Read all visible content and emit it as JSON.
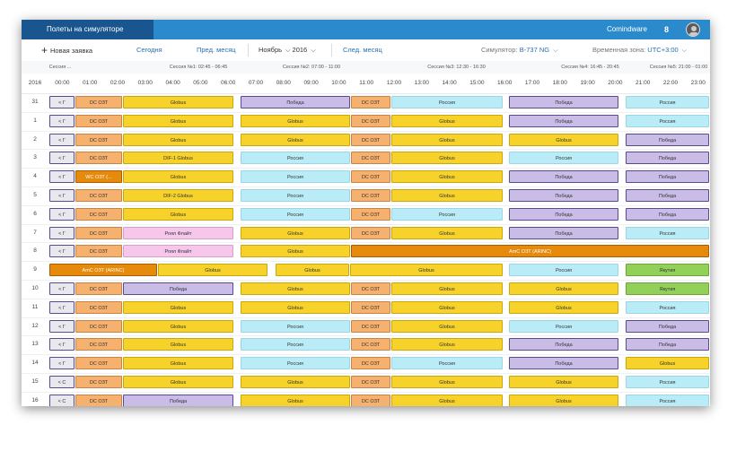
{
  "header": {
    "app_title": "Полеты на симуляторе",
    "brand": "Comindware",
    "badge": "8"
  },
  "toolbar": {
    "new_request": "Новая заявка",
    "today": "Сегодня",
    "prev_month": "Пред. месяц",
    "month": "Ноябрь",
    "year": "2016",
    "next_month": "След. месяц",
    "simulator_label": "Симулятор:",
    "simulator_value": "B-737 NG",
    "timezone_label": "Временная зона:",
    "timezone_value": "UTC+3:00"
  },
  "icons": {
    "add": "plus-icon",
    "dropdown": "chevron-down-icon",
    "avatar": "user-avatar-icon"
  },
  "colors": {
    "topbar": "#2a8acb",
    "title": "#19558f",
    "dc_ozt": "#f7b16e",
    "globus": "#f6d22a",
    "pobeda": "#c9bde8",
    "rossiya": "#b9ecf7",
    "royal": "#f6c6eb",
    "arinc": "#e58a0a",
    "yakutia": "#92d05a"
  },
  "sessions": [
    {
      "label": "Сессия ..."
    },
    {
      "label": "Сессия №1: 02:45 - 06:45"
    },
    {
      "label": "Сессия №2: 07:00 - 11:00"
    },
    {
      "label": "Сессия №3: 12:30 - 16:30"
    },
    {
      "label": "Сессия №4: 16:45 - 20:45"
    },
    {
      "label": "Сессия №5: 21:00 - 01:00"
    }
  ],
  "year_label": "2016",
  "hours": [
    "00:00",
    "01:00",
    "02:00",
    "03:00",
    "04:00",
    "05:00",
    "06:00",
    "07:00",
    "08:00",
    "09:00",
    "10:00",
    "11:00",
    "12:00",
    "13:00",
    "14:00",
    "15:00",
    "16:00",
    "17:00",
    "18:00",
    "19:00",
    "20:00",
    "21:00",
    "22:00",
    "23:00"
  ],
  "rows": [
    {
      "day": "31",
      "prefix": "<  Г",
      "blocks": [
        [
          "DC ОЗТ",
          "o"
        ],
        [
          "Globus",
          "y"
        ],
        [
          "Победа",
          "p"
        ],
        [
          "DC ОЗТ",
          "o"
        ],
        [
          "Россия",
          "c"
        ],
        [
          "Победа",
          "p"
        ],
        [
          "Россия",
          "c"
        ]
      ]
    },
    {
      "day": "1",
      "prefix": "<  Г",
      "blocks": [
        [
          "DC ОЗТ",
          "o"
        ],
        [
          "Globus",
          "y"
        ],
        [
          "Globus",
          "y"
        ],
        [
          "DC ОЗТ",
          "o"
        ],
        [
          "Globus",
          "y"
        ],
        [
          "Победа",
          "p"
        ],
        [
          "Россия",
          "c"
        ]
      ]
    },
    {
      "day": "2",
      "prefix": "<  Г",
      "blocks": [
        [
          "DC ОЗТ",
          "o"
        ],
        [
          "Globus",
          "y"
        ],
        [
          "Globus",
          "y"
        ],
        [
          "DC ОЗТ",
          "o"
        ],
        [
          "Globus",
          "y"
        ],
        [
          "Globus",
          "y"
        ],
        [
          "Победа",
          "p"
        ]
      ]
    },
    {
      "day": "3",
      "prefix": "<  Г",
      "blocks": [
        [
          "DC ОЗТ",
          "o"
        ],
        [
          "DIF-1 Globus",
          "y"
        ],
        [
          "Россия",
          "c"
        ],
        [
          "DC ОЗТ",
          "o"
        ],
        [
          "Globus",
          "y"
        ],
        [
          "Россия",
          "c"
        ],
        [
          "Победа",
          "p"
        ]
      ]
    },
    {
      "day": "4",
      "prefix": "<  Г",
      "blocks": [
        [
          "WC ОЗТ (...",
          "d"
        ],
        [
          "Globus",
          "y"
        ],
        [
          "Россия",
          "c"
        ],
        [
          "DC ОЗТ",
          "o"
        ],
        [
          "Globus",
          "y"
        ],
        [
          "Победа",
          "p"
        ],
        [
          "Победа",
          "p"
        ]
      ]
    },
    {
      "day": "5",
      "prefix": "<  Г",
      "blocks": [
        [
          "DC ОЗТ",
          "o"
        ],
        [
          "DIF-2 Globus",
          "y"
        ],
        [
          "Россия",
          "c"
        ],
        [
          "DC ОЗТ",
          "o"
        ],
        [
          "Globus",
          "y"
        ],
        [
          "Победа",
          "p"
        ],
        [
          "Победа",
          "p"
        ]
      ]
    },
    {
      "day": "6",
      "prefix": "<  Г",
      "blocks": [
        [
          "DC ОЗТ",
          "o"
        ],
        [
          "Globus",
          "y"
        ],
        [
          "Россия",
          "c"
        ],
        [
          "DC ОЗТ",
          "o"
        ],
        [
          "Россия",
          "c"
        ],
        [
          "Победа",
          "p"
        ],
        [
          "Победа",
          "p"
        ]
      ]
    },
    {
      "day": "7",
      "prefix": "<  Г",
      "blocks": [
        [
          "DC ОЗТ",
          "o"
        ],
        [
          "Роял Флайт",
          "k"
        ],
        [
          "Globus",
          "y"
        ],
        [
          "DC ОЗТ",
          "o"
        ],
        [
          "Globus",
          "y"
        ],
        [
          "Победа",
          "p"
        ],
        [
          "Россия",
          "c"
        ]
      ]
    },
    {
      "day": "8",
      "prefix": "<  Г",
      "special": "arinc8",
      "blocks": [
        [
          "DC ОЗТ",
          "o"
        ],
        [
          "Роял Флайт",
          "k"
        ],
        [
          "Globus",
          "y"
        ],
        [
          "AmC ОЗТ (ARINC)",
          "d"
        ]
      ]
    },
    {
      "day": "9",
      "prefix": "",
      "special": "arinc9",
      "blocks": [
        [
          "AmC ОЗТ (ARINC)",
          "d"
        ],
        [
          "Globus",
          "y"
        ],
        [
          "Globus",
          "y"
        ],
        [
          "Globus",
          "y"
        ],
        [
          "Россия",
          "c"
        ],
        [
          "Якутия",
          "g"
        ]
      ]
    },
    {
      "day": "10",
      "prefix": "<  Г",
      "blocks": [
        [
          "DC ОЗТ",
          "o"
        ],
        [
          "Победа",
          "p"
        ],
        [
          "Globus",
          "y"
        ],
        [
          "DC ОЗТ",
          "o"
        ],
        [
          "Globus",
          "y"
        ],
        [
          "Globus",
          "y"
        ],
        [
          "Якутия",
          "g"
        ]
      ]
    },
    {
      "day": "11",
      "prefix": "<  Г",
      "blocks": [
        [
          "DC ОЗТ",
          "o"
        ],
        [
          "Globus",
          "y"
        ],
        [
          "Globus",
          "y"
        ],
        [
          "DC ОЗТ",
          "o"
        ],
        [
          "Globus",
          "y"
        ],
        [
          "Globus",
          "y"
        ],
        [
          "Россия",
          "c"
        ]
      ]
    },
    {
      "day": "12",
      "prefix": "<  Г",
      "blocks": [
        [
          "DC ОЗТ",
          "o"
        ],
        [
          "Globus",
          "y"
        ],
        [
          "Россия",
          "c"
        ],
        [
          "DC ОЗТ",
          "o"
        ],
        [
          "Globus",
          "y"
        ],
        [
          "Россия",
          "c"
        ],
        [
          "Победа",
          "p"
        ]
      ]
    },
    {
      "day": "13",
      "prefix": "<  Г",
      "blocks": [
        [
          "DC ОЗТ",
          "o"
        ],
        [
          "Globus",
          "y"
        ],
        [
          "Россия",
          "c"
        ],
        [
          "DC ОЗТ",
          "o"
        ],
        [
          "Globus",
          "y"
        ],
        [
          "Победа",
          "p"
        ],
        [
          "Победа",
          "p"
        ]
      ]
    },
    {
      "day": "14",
      "prefix": "<  Г",
      "blocks": [
        [
          "DC ОЗТ",
          "o"
        ],
        [
          "Globus",
          "y"
        ],
        [
          "Россия",
          "c"
        ],
        [
          "DC ОЗТ",
          "o"
        ],
        [
          "Россия",
          "c"
        ],
        [
          "Победа",
          "p"
        ],
        [
          "Globus",
          "y"
        ]
      ]
    },
    {
      "day": "15",
      "prefix": "<  С",
      "blocks": [
        [
          "DC ОЗТ",
          "o"
        ],
        [
          "Globus",
          "y"
        ],
        [
          "Globus",
          "y"
        ],
        [
          "DC ОЗТ",
          "o"
        ],
        [
          "Globus",
          "y"
        ],
        [
          "Globus",
          "y"
        ],
        [
          "Россия",
          "c"
        ]
      ]
    },
    {
      "day": "16",
      "prefix": "<  С",
      "blocks": [
        [
          "DC ОЗТ",
          "o"
        ],
        [
          "Победа",
          "p"
        ],
        [
          "Globus",
          "y"
        ],
        [
          "DC ОЗТ",
          "o"
        ],
        [
          "Globus",
          "y"
        ],
        [
          "Globus",
          "y"
        ],
        [
          "Россия",
          "c"
        ]
      ]
    }
  ]
}
